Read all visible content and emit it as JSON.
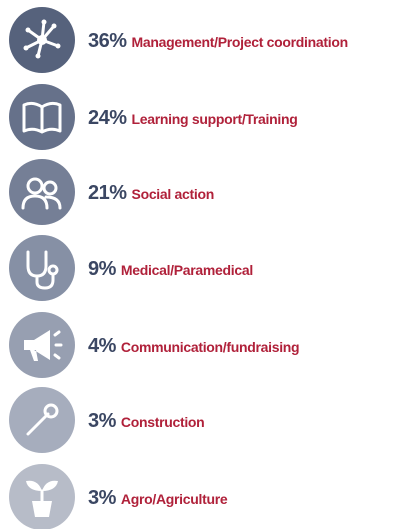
{
  "items": [
    {
      "percent": "36%",
      "label": "Management/Project coordination"
    },
    {
      "percent": "24%",
      "label": "Learning support/Training"
    },
    {
      "percent": "21%",
      "label": "Social action"
    },
    {
      "percent": "9%",
      "label": "Medical/Paramedical"
    },
    {
      "percent": "4%",
      "label": "Communication/fundraising"
    },
    {
      "percent": "3%",
      "label": "Construction"
    },
    {
      "percent": "3%",
      "label": "Agro/Agriculture"
    }
  ]
}
